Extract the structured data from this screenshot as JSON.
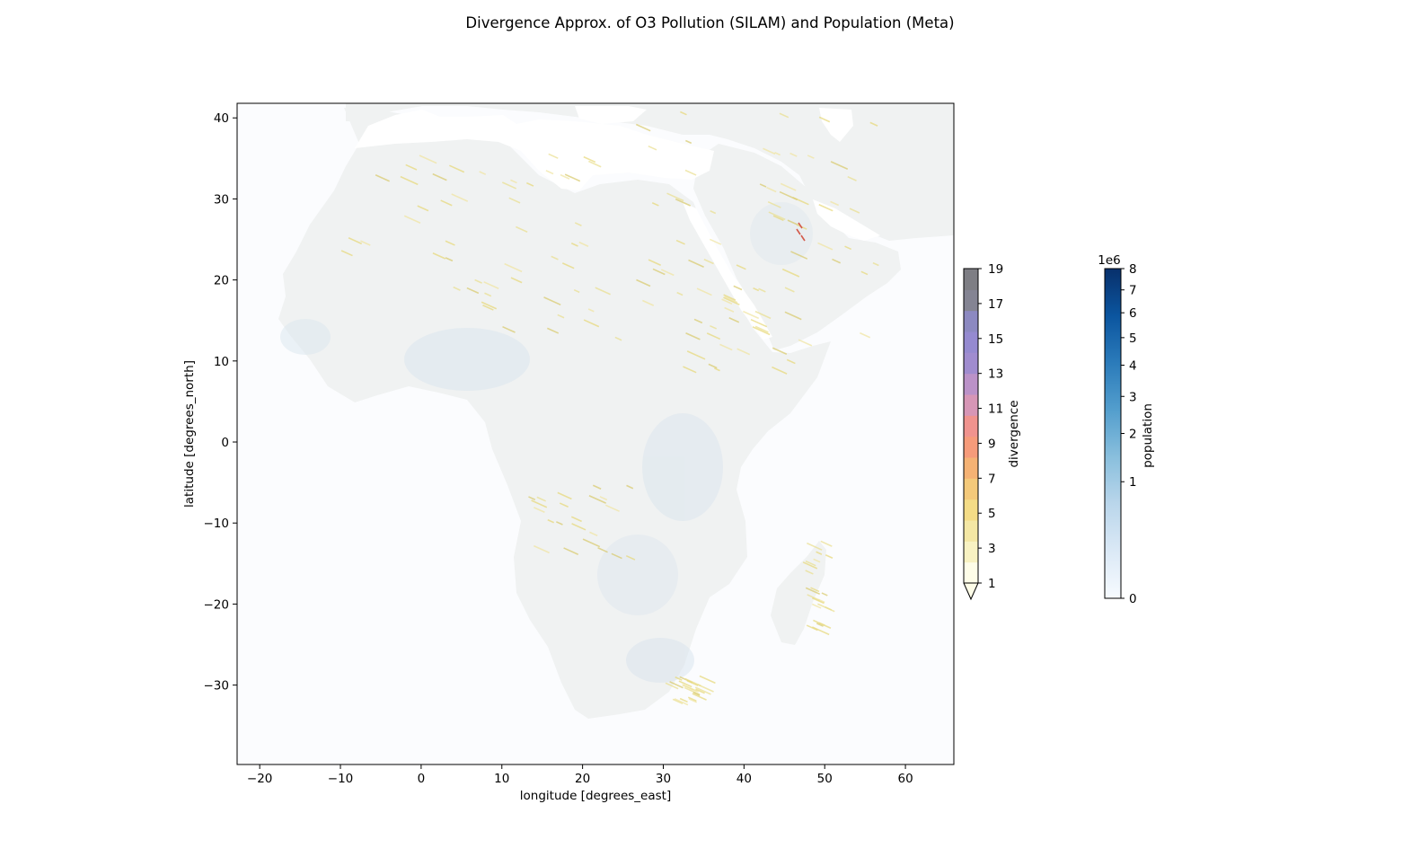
{
  "figure": {
    "title": "Divergence Approx. of O3 Pollution (SILAM) and Population (Meta)"
  },
  "map": {
    "xlabel": "longitude [degrees_east]",
    "ylabel": "latitude [degrees_north]",
    "xlim": [
      -22.8,
      66
    ],
    "ylim": [
      -39.8,
      41.8
    ],
    "xticks": [
      -20,
      -10,
      0,
      10,
      20,
      30,
      40,
      50,
      60
    ],
    "yticks": [
      40,
      30,
      20,
      10,
      0,
      -10,
      -20,
      -30
    ],
    "land_color": "#f0f2f2",
    "sea_color": "#fbfcfe",
    "water_color": "#ffffff"
  },
  "colorbars": {
    "divergence": {
      "label": "divergence",
      "ticks": [
        19,
        17,
        15,
        13,
        11,
        9,
        7,
        5,
        3,
        1
      ],
      "min": 1,
      "max": 19,
      "extend": "min",
      "colors": [
        "#fefde8",
        "#f8f2c2",
        "#f4e7a4",
        "#f4dc86",
        "#f4c97a",
        "#f5b274",
        "#f69b7a",
        "#f0938e",
        "#d796b6",
        "#bb92c8",
        "#a08ccf",
        "#958ad0",
        "#8c89c1",
        "#848493",
        "#7e7e84"
      ]
    },
    "population": {
      "label": "population",
      "exponent": "1e6",
      "ticks": [
        {
          "label": "8",
          "value": 8
        },
        {
          "label": "7",
          "value": 7
        },
        {
          "label": "6",
          "value": 6
        },
        {
          "label": "5",
          "value": 5
        },
        {
          "label": "4",
          "value": 4
        },
        {
          "label": "3",
          "value": 3
        },
        {
          "label": "2",
          "value": 2
        },
        {
          "label": "1",
          "value": 1
        },
        {
          "label": "0",
          "value": 0
        }
      ],
      "scale": "sqrt",
      "colors": [
        "#f7fbff",
        "#dbe9f6",
        "#bad6eb",
        "#89bfdd",
        "#539ecd",
        "#2b7bba",
        "#0b559f",
        "#08306b"
      ]
    }
  }
}
